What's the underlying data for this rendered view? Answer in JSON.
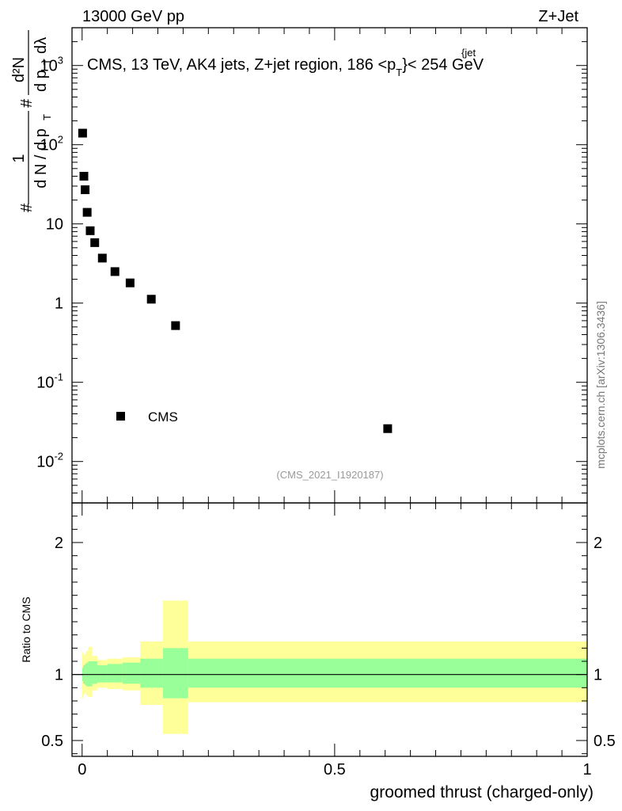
{
  "header": {
    "left": "13000 GeV pp",
    "right": "Z+Jet",
    "title": "CMS, 13 TeV, AK4 jets, Z+jet region, 186 <p",
    "title_sup": "{jet",
    "title_sub": "T",
    "title_tail": "}< 254 GeV",
    "analysis_id": "(CMS_2021_I1920187)",
    "side_label": "mcplots.cern.ch [arXiv:1306.3436]"
  },
  "chart_data": [
    {
      "type": "scatter",
      "panel": "main",
      "yscale": "log",
      "ylabel": "1 / (dN / dp_T) · d²N / (dp_T dλ)",
      "xlim": [
        -0.02,
        1.0
      ],
      "ylim": [
        0.003,
        3000
      ],
      "ytick_labels": [
        "10^-2",
        "10^-1",
        "1",
        "10",
        "10^2",
        "10^3"
      ],
      "series": [
        {
          "name": "CMS",
          "marker": "square",
          "color": "#000000",
          "x": [
            0.001,
            0.0035,
            0.006,
            0.01,
            0.016,
            0.025,
            0.04,
            0.065,
            0.095,
            0.137,
            0.185,
            0.605
          ],
          "y": [
            140,
            40,
            27,
            14,
            8.2,
            5.8,
            3.7,
            2.5,
            1.8,
            1.12,
            0.52,
            0.026
          ]
        }
      ],
      "legend": {
        "position": "bottom-left",
        "entries": [
          "CMS"
        ]
      }
    },
    {
      "type": "area",
      "panel": "ratio",
      "ylabel": "Ratio to CMS",
      "xlabel": "groomed thrust (charged-only)",
      "xlim": [
        -0.02,
        1.0
      ],
      "ylim": [
        0.38,
        2.3
      ],
      "yticks": [
        0.5,
        1,
        2
      ],
      "ytick_labels": [
        "0.5",
        "1",
        "2"
      ],
      "xticks": [
        0,
        0.5,
        1
      ],
      "xtick_labels": [
        "0",
        "0.5",
        "1"
      ],
      "reference_line": 1,
      "bands": {
        "edges": [
          0,
          0.002,
          0.005,
          0.008,
          0.012,
          0.02,
          0.03,
          0.05,
          0.08,
          0.115,
          0.16,
          0.21,
          1.0
        ],
        "inner_lo": [
          0.95,
          0.93,
          0.92,
          0.91,
          0.91,
          0.93,
          0.94,
          0.94,
          0.93,
          0.9,
          0.82,
          0.9
        ],
        "inner_hi": [
          1.05,
          1.07,
          1.08,
          1.09,
          1.1,
          1.1,
          1.07,
          1.08,
          1.09,
          1.12,
          1.2,
          1.12
        ],
        "outer_lo": [
          0.82,
          0.85,
          0.86,
          0.84,
          0.83,
          0.88,
          0.9,
          0.89,
          0.88,
          0.77,
          0.55,
          0.79
        ],
        "outer_hi": [
          1.17,
          1.15,
          1.16,
          1.18,
          1.21,
          1.14,
          1.11,
          1.12,
          1.13,
          1.25,
          1.56,
          1.25
        ],
        "inner_color": "#99ff99",
        "outer_color": "#ffff99"
      }
    }
  ]
}
